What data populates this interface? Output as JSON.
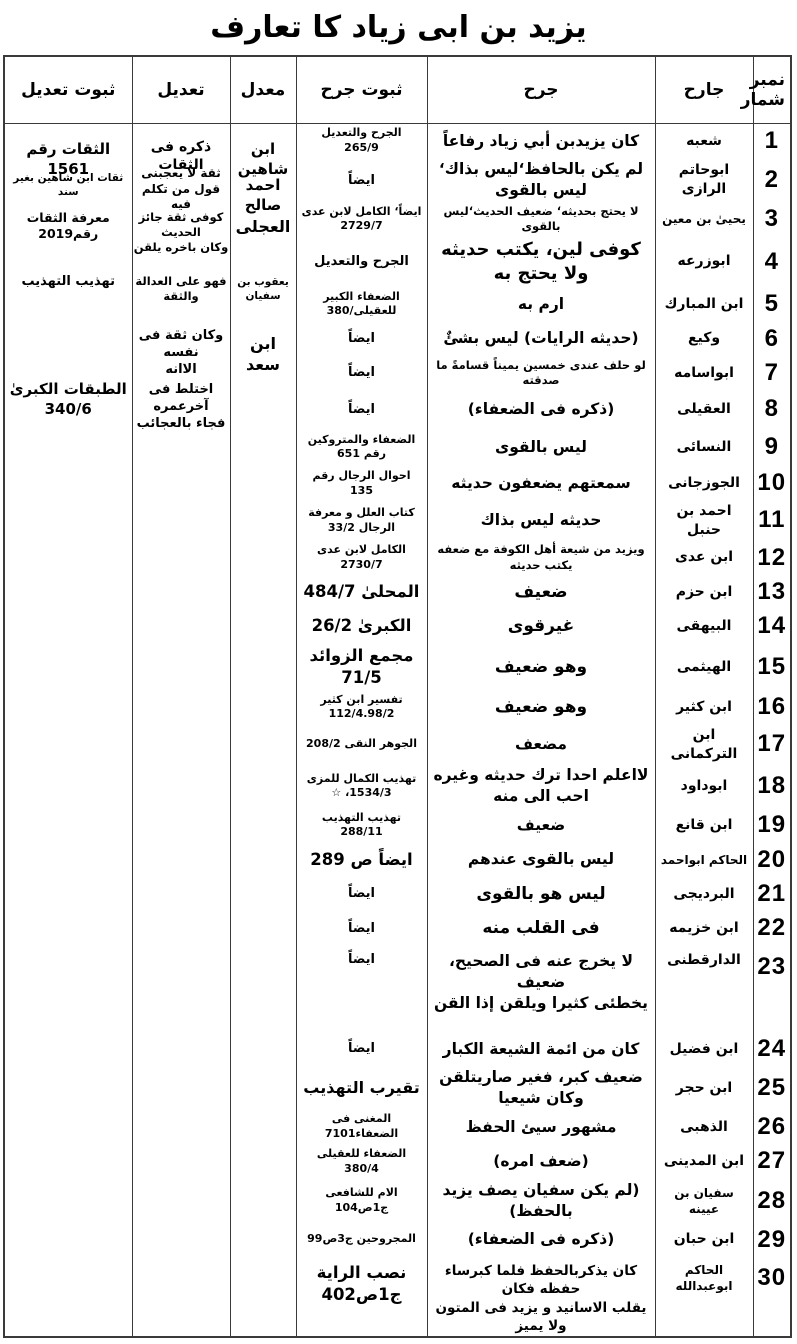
{
  "title": "يزيد بن ابى زياد كا تعارف",
  "table": {
    "headers": {
      "num": "نمبر\nشمار",
      "jarih": "جارح",
      "jarh": "جرح",
      "suboot_jarh": "ثبوت جرح",
      "moaddil": "معدل",
      "tadeel": "تعديل",
      "suboot_tadeel": "ثبوت تعديل"
    },
    "rows": [
      {
        "num": "1",
        "jarih": "شعبه",
        "jarh": "كان يزيدبن أبي زياد رفاعاً",
        "suboot_jarh": "الجرح والتعديل\n265/9"
      },
      {
        "num": "2",
        "jarih": "ابوحاتم الرازى",
        "jarh": "لم يكن بالحافظ‘ليس بذاك‘ ليس بالقوى",
        "suboot_jarh": "ايضاً"
      },
      {
        "num": "3",
        "jarih": "يحيىٰ بن معين",
        "jarh": "لا يحتج بحديثه‘ ضعيف الحديث‘ليس بالقوى",
        "suboot_jarh": "ايضاً‘ الكامل لابن عدى\n2729/7"
      },
      {
        "num": "4",
        "jarih": "ابوزرعه",
        "jarh": "كوفى لين، يكتب حديثه ولا يحتج به",
        "suboot_jarh": "الجرح والتعديل"
      },
      {
        "num": "5",
        "jarih": "ابن المبارك",
        "jarh": "ارم به",
        "suboot_jarh": "الضعفاء الكبير للعقيلى/380"
      },
      {
        "num": "6",
        "jarih": "وكيع",
        "jarh": "(حديثه الرايات) ليس بشئٌ",
        "suboot_jarh": "ايضاً"
      },
      {
        "num": "7",
        "jarih": "ابواسامه",
        "jarh": "لو حلف عندى خمسين يميناً قسامةً ما صدقته",
        "suboot_jarh": "ايضاً"
      },
      {
        "num": "8",
        "jarih": "العقيلى",
        "jarh": "(ذكره فى الضعفاء)",
        "suboot_jarh": "ايضاً"
      },
      {
        "num": "9",
        "jarih": "النسائى",
        "jarh": "ليس بالقوى",
        "suboot_jarh": "الضعفاء والمتروكين رقم 651"
      },
      {
        "num": "10",
        "jarih": "الجوزجانى",
        "jarh": "سمعتهم يضعفون حديثه",
        "suboot_jarh": "احوال الرجال رقم 135"
      },
      {
        "num": "11",
        "jarih": "احمد بن حنبل",
        "jarh": "حديثه ليس بذاك",
        "suboot_jarh": "كتاب العلل و معرفة الرجال 33/2"
      },
      {
        "num": "12",
        "jarih": "ابن عدى",
        "jarh": "ويزيد من شيعة أهل الكوفة مع ضعفه يكتب حديثه",
        "suboot_jarh": "الكامل لابن عدى 2730/7"
      },
      {
        "num": "13",
        "jarih": "ابن حزم",
        "jarh": "ضعيف",
        "suboot_jarh": "المحلىٰ 484/7"
      },
      {
        "num": "14",
        "jarih": "البيهقى",
        "jarh": "غيرقوى",
        "suboot_jarh": "الكبرىٰ 26/2"
      },
      {
        "num": "15",
        "jarih": "الهيثمى",
        "jarh": "وهو ضعيف",
        "suboot_jarh": "مجمع الزوائد 71/5"
      },
      {
        "num": "16",
        "jarih": "ابن كثير",
        "jarh": "وهو ضعيف",
        "suboot_jarh": "تفسير ابن كثير\n112/4.98/2"
      },
      {
        "num": "17",
        "jarih": "ابن التركمانى",
        "jarh": "مضعف",
        "suboot_jarh": "الجوهر النقى 208/2"
      },
      {
        "num": "18",
        "jarih": "ابوداود",
        "jarh": "لااعلم احدا ترك حديثه وغيره احب الى منه",
        "suboot_jarh": "تهذيب الكمال للمزى\n1534/3، ☆"
      },
      {
        "num": "19",
        "jarih": "ابن قانع",
        "jarh": "ضعيف",
        "suboot_jarh": "تهذيب التهذيب 288/11"
      },
      {
        "num": "20",
        "jarih": "الحاكم ابواحمد",
        "jarh": "ليس بالقوى عندهم",
        "suboot_jarh": "ايضاً ص 289"
      },
      {
        "num": "21",
        "jarih": "البرديجى",
        "jarh": "ليس هو بالقوى",
        "suboot_jarh": "ايضاً"
      },
      {
        "num": "22",
        "jarih": "ابن خزيمه",
        "jarh": "فى القلب منه",
        "suboot_jarh": "ايضاً"
      },
      {
        "num": "23",
        "jarih": "الدارقطنى",
        "jarh": "لا يخرج عنه فى الصحيح، ضعيف\nيخطئى كثيرا ويلقن إذا القن",
        "suboot_jarh": "ايضاً"
      },
      {
        "num": "24",
        "jarih": "ابن فضيل",
        "jarh": "كان من ائمة الشيعة الكبار",
        "suboot_jarh": "ايضاً"
      },
      {
        "num": "25",
        "jarih": "ابن حجر",
        "jarh": "ضعيف كبر، فغير صاريتلقن وكان شيعيا",
        "suboot_jarh": "تقيرب التهذيب"
      },
      {
        "num": "26",
        "jarih": "الذهبى",
        "jarh": "مشهور سيئ الحفظ",
        "suboot_jarh": "المغنى فى الضعفاء7101"
      },
      {
        "num": "27",
        "jarih": "ابن المدينى",
        "jarh": "(ضعف امره)",
        "suboot_jarh": "الضعفاء للعقيلى 380/4"
      },
      {
        "num": "28",
        "jarih": "سفيان بن عيينه",
        "jarh": "(لم يكن سفيان يصف يزيد بالحفظ)",
        "suboot_jarh": "الام للشافعى ج1ص104"
      },
      {
        "num": "29",
        "jarih": "ابن حبان",
        "jarh": "(ذكره فى الضعفاء)",
        "suboot_jarh": "المجروحين ج3ص99"
      },
      {
        "num": "30",
        "jarih": "الحاكم ابوعبدالله",
        "jarh": "كان يذكربالحفظ فلما كبرساء حفظه فكان\nيقلب الاسانيد و يزيد فى المتون ولا يميز",
        "suboot_jarh": "نصب الراية\nج1ص402"
      }
    ],
    "moaddil_entries": [
      "ابن شاهين",
      "احمد صالح",
      "العجلى",
      "يعقوب بن سفيان",
      "ابن سعد"
    ],
    "tadeel_entries": [
      "ذكره فى الثقات",
      "ثقة لا يعجبنى\nقول من تكلم فيه",
      "كوفى ثقة جائز الحديث\nوكان باخره يلقن",
      "فهو على العدالة والثقة",
      "وكان ثقة فى نفسه\nالاانه",
      "اختلط فى آخرعمره\nفجاء بالعجائب"
    ],
    "suboot_tadeel_entries": [
      "الثقات رقم 1561",
      "ثقات ابن شاهين بغير سند",
      "معرفة الثقات رقم2019",
      "تهذيب التهذيب",
      "الطبقات الكبرىٰ\n340/6"
    ]
  }
}
